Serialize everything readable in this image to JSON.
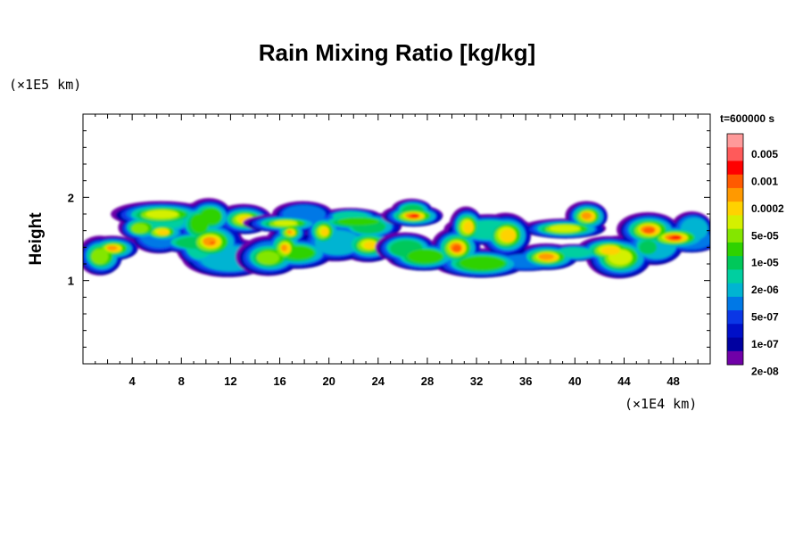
{
  "chart_data": {
    "type": "heatmap",
    "title": "Rain Mixing Ratio [kg/kg]",
    "ylabel": "Height",
    "xlabel": "",
    "x_unit": "(×1E4 km)",
    "y_unit": "(×1E5 km)",
    "time_label": "t=600000 s",
    "xlim": [
      0,
      51
    ],
    "ylim": [
      0,
      3
    ],
    "x_ticks": [
      4,
      8,
      12,
      16,
      20,
      24,
      28,
      32,
      36,
      40,
      44,
      48
    ],
    "y_ticks": [
      1,
      2
    ],
    "colorbar": {
      "labels": [
        "0.005",
        "0.001",
        "0.0002",
        "5e-05",
        "1e-05",
        "2e-06",
        "5e-07",
        "1e-07",
        "2e-08"
      ],
      "colors": [
        "#ff9a9a",
        "#ff5a5a",
        "#ff0000",
        "#ff5a00",
        "#ff9900",
        "#ffd200",
        "#d4f000",
        "#84e600",
        "#2ed200",
        "#00c85a",
        "#00cfa0",
        "#00b4d2",
        "#0078e6",
        "#0a37e6",
        "#000fc8",
        "#0000a0",
        "#7000a8"
      ]
    },
    "regions": [
      {
        "name": "",
        "x": [
          0.5,
          15
        ],
        "y": [
          1.1,
          1.95
        ],
        "max_level": 13
      },
      {
        "name": "",
        "x": [
          14.5,
          24
        ],
        "y": [
          1.15,
          1.95
        ],
        "max_level": 12
      },
      {
        "name": "",
        "x": [
          25,
          51
        ],
        "y": [
          1.05,
          2.0
        ],
        "max_level": 14
      }
    ]
  }
}
